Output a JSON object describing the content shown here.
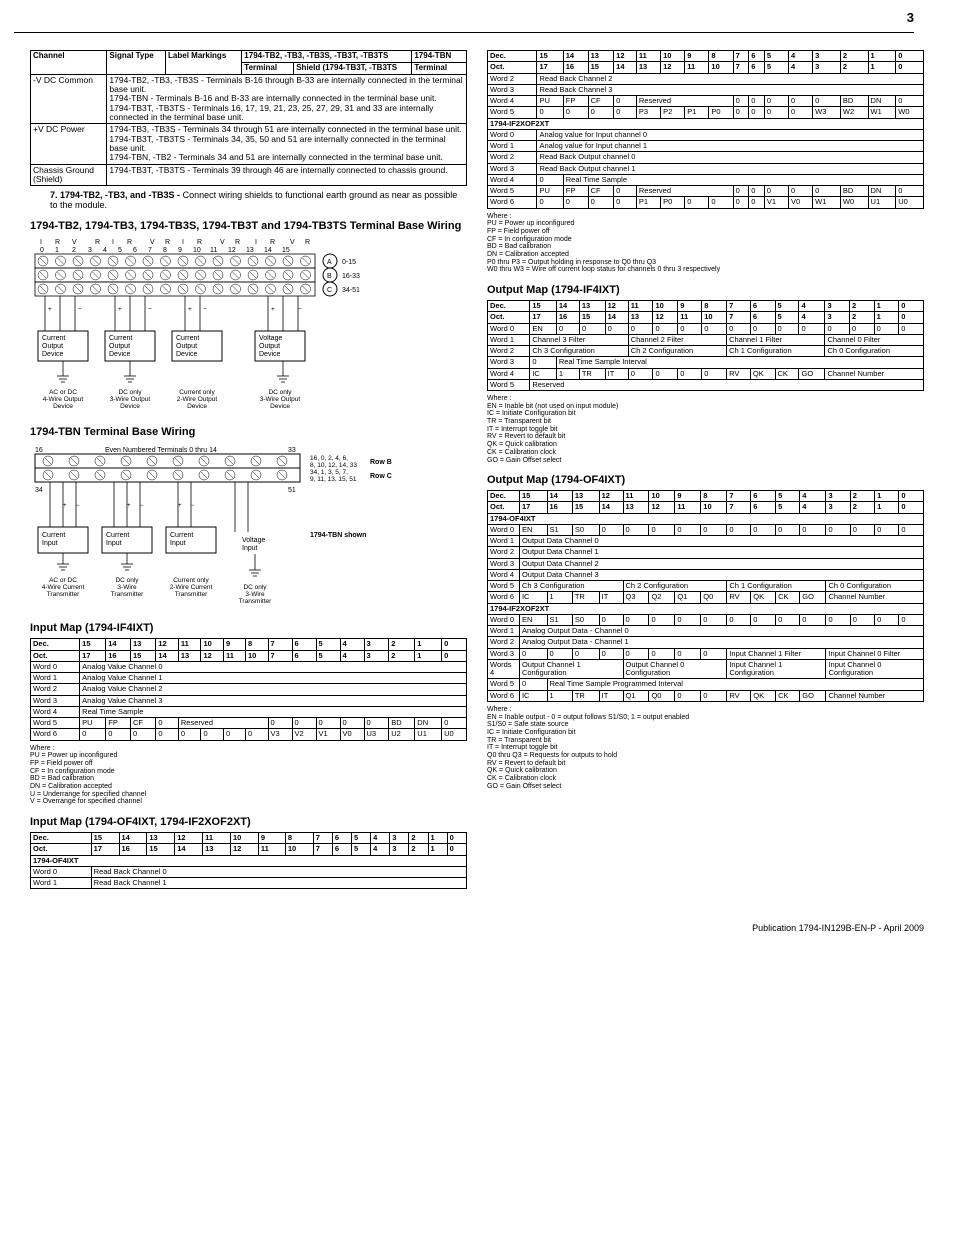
{
  "page_number": "3",
  "publication": "Publication 1794-IN129B-EN-P - April 2009",
  "footnote": {
    "num": "7.",
    "bold": "1794-TB2, -TB3, and -TB3S -",
    "text": "Connect wiring shields to functional earth ground as near as possible to the module."
  },
  "channel_table": {
    "headers": [
      "Channel",
      "Signal Type",
      "Label Markings",
      "1794-TB2, -TB3, -TB3S, -TB3T, -TB3TS",
      "1794-TBN"
    ],
    "sub_headers": [
      "Terminal",
      "Shield (1794-TB3T, -TB3TS",
      "Terminal"
    ],
    "rows": [
      {
        "ch": "-V DC Common",
        "desc": "1794-TB2, -TB3, -TB3S - Terminals B-16 through B-33 are internally connected in the terminal base unit.\n1794-TBN - Terminals B-16 and B-33 are internally connected in the terminal base unit.\n1794-TB3T, -TB3TS - Terminals 16, 17, 19, 21, 23, 25, 27, 29, 31 and 33 are internally connected in the terminal base unit."
      },
      {
        "ch": "+V DC Power",
        "desc": "1794-TB3, -TB3S - Terminals 34 through 51 are internally connected in the terminal base unit.\n1794-TB3T, -TB3TS - Terminals 34, 35, 50 and 51 are internally connected in the terminal base unit.\n1794-TBN, -TB2 - Terminals 34 and 51 are internally connected in the terminal base unit."
      },
      {
        "ch": "Chassis Ground (Shield)",
        "desc": "1794-TB3T, -TB3TS - Terminals 39 through 46 are internally connected to chassis ground."
      }
    ]
  },
  "wiring_section": {
    "title": "1794-TB2, 1794-TB3, 1794-TB3S, 1794-TB3T and 1794-TB3TS Terminal Base Wiring",
    "rowA_label": "0-15",
    "rowB_label": "16-33",
    "rowC_label": "34-51",
    "devices": [
      "Current Output Device",
      "Current Output Device",
      "Current Output Device",
      "Voltage Output Device"
    ],
    "wire_labels": [
      "AC or DC 4-Wire Output Device",
      "DC only 3-Wire Output Device",
      "Current only 2-Wire Output Device",
      "DC only 3-Wire Output Device"
    ]
  },
  "tbn_section": {
    "title": "1794-TBN Terminal Base Wiring",
    "rowB_label": "Row B",
    "rowB_text": "16, 0, 2, 4, 6, 8, 10, 12, 14, 33",
    "rowC_label": "Row C",
    "rowC_text": "34, 1, 3, 5, 7, 9, 11, 13, 15, 51",
    "top_label": "Even Numbered Terminals 0 thru 14",
    "left_num": "16",
    "right_num": "33",
    "left_num2": "34",
    "right_num2": "51",
    "shown_label": "1794-TBN shown",
    "devices": [
      "Current Input",
      "Current Input",
      "Current Input",
      "Voltage Input"
    ],
    "wire_labels": [
      "AC or DC 4-Wire Current Transmitter",
      "DC only 3-Wire Transmitter",
      "Current only 2-Wire Current Transmitter",
      "DC only 3-Wire Transmitter"
    ]
  },
  "input_map_if4ixt": {
    "title": "Input Map  (1794-IF4IXT)",
    "dec_header": [
      "Dec.",
      "15",
      "14",
      "13",
      "12",
      "11",
      "10",
      "9",
      "8",
      "7",
      "6",
      "5",
      "4",
      "3",
      "2",
      "1",
      "0"
    ],
    "oct_header": [
      "Oct.",
      "17",
      "16",
      "15",
      "14",
      "13",
      "12",
      "11",
      "10",
      "7",
      "6",
      "5",
      "4",
      "3",
      "2",
      "1",
      "0"
    ],
    "rows": [
      {
        "label": "Word 0",
        "span": "Analog Value Channel 0"
      },
      {
        "label": "Word 1",
        "span": "Analog Value Channel 1"
      },
      {
        "label": "Word 2",
        "span": "Analog Value Channel 2"
      },
      {
        "label": "Word 3",
        "span": "Analog Value Channel 3"
      },
      {
        "label": "Word 4",
        "span": "Real Time Sample"
      }
    ],
    "word5": [
      "Word 5",
      "PU",
      "FP",
      "CF",
      "0",
      "Reserved",
      "",
      "",
      "",
      "0",
      "0",
      "0",
      "0",
      "0",
      "BD",
      "DN",
      "0"
    ],
    "word6": [
      "Word 6",
      "0",
      "0",
      "0",
      "0",
      "0",
      "0",
      "0",
      "0",
      "V3",
      "V2",
      "V1",
      "V0",
      "U3",
      "U2",
      "U1",
      "U0"
    ],
    "notes": "Where :\nPU = Power up inconfigured\nFP = Field power off\nCF = In configuration mode\nBD = Bad calibration\nDN = Calibration accepted\nU = Underrange for specified channel\nV = Overrange for specified channel"
  },
  "input_map_of4ixt": {
    "title": "Input Map (1794-OF4IXT, 1794-IF2XOF2XT)",
    "dec_header": [
      "Dec.",
      "15",
      "14",
      "13",
      "12",
      "11",
      "10",
      "9",
      "8",
      "7",
      "6",
      "5",
      "4",
      "3",
      "2",
      "1",
      "0"
    ],
    "oct_header": [
      "Oct.",
      "17",
      "16",
      "15",
      "14",
      "13",
      "12",
      "11",
      "10",
      "7",
      "6",
      "5",
      "4",
      "3",
      "2",
      "1",
      "0"
    ],
    "section1": "1794-OF4IXT",
    "rows1": [
      {
        "label": "Word 0",
        "span": "Read Back Channel 0"
      },
      {
        "label": "Word 1",
        "span": "Read Back Channel 1"
      }
    ]
  },
  "right_top": {
    "dec_header": [
      "Dec.",
      "15",
      "14",
      "13",
      "12",
      "11",
      "10",
      "9",
      "8",
      "7",
      "6",
      "5",
      "4",
      "3",
      "2",
      "1",
      "0"
    ],
    "oct_header": [
      "Oct.",
      "17",
      "16",
      "15",
      "14",
      "13",
      "12",
      "11",
      "10",
      "7",
      "6",
      "5",
      "4",
      "3",
      "2",
      "1",
      "0"
    ],
    "rows_a": [
      {
        "label": "Word 2",
        "span": "Read Back Channel 2"
      },
      {
        "label": "Word 3",
        "span": "Read Back Channel 3"
      }
    ],
    "word4": [
      "Word 4",
      "PU",
      "FP",
      "CF",
      "0",
      "Reserved",
      "",
      "",
      "",
      "0",
      "0",
      "0",
      "0",
      "0",
      "BD",
      "DN",
      "0"
    ],
    "word5": [
      "Word 5",
      "0",
      "0",
      "0",
      "0",
      "P3",
      "P2",
      "P1",
      "P0",
      "0",
      "0",
      "0",
      "0",
      "W3",
      "W2",
      "W1",
      "W0"
    ],
    "section2": "1794-IF2XOF2XT",
    "rows_b": [
      {
        "label": "Word 0",
        "span": "Analog value for Input channel 0"
      },
      {
        "label": "Word 1",
        "span": "Analog value for Input channel 1"
      },
      {
        "label": "Word 2",
        "span": "Read Back Output channel 0"
      },
      {
        "label": "Word 3",
        "span": "Read Back Output channel 1"
      }
    ],
    "word4b": [
      "Word 4",
      "0",
      "Real Time Sample",
      "",
      "",
      "",
      "",
      "",
      "",
      "",
      "",
      "",
      "",
      "",
      "",
      "",
      ""
    ],
    "word5b": [
      "Word 5",
      "PU",
      "FP",
      "CF",
      "0",
      "Reserved",
      "",
      "",
      "",
      "0",
      "0",
      "0",
      "0",
      "0",
      "BD",
      "DN",
      "0"
    ],
    "word6b": [
      "Word 6",
      "0",
      "0",
      "0",
      "0",
      "P1",
      "P0",
      "0",
      "0",
      "0",
      "0",
      "V1",
      "V0",
      "W1",
      "W0",
      "U1",
      "U0"
    ],
    "notes": "Where :\nPU = Power up inconfigured\nFP = Field power off\nCF = In configuration mode\nBD = Bad calibration\nDN = Calibration accepted\nP0 thru P3 = Output holding in response to Q0 thru Q3\nW0 thru W3 = Wire off current loop status for channels 0 thru 3 respectively"
  },
  "output_map_if4ixt": {
    "title": "Output Map (1794-IF4IXT)",
    "dec_header": [
      "Dec.",
      "15",
      "14",
      "13",
      "12",
      "11",
      "10",
      "9",
      "8",
      "7",
      "6",
      "5",
      "4",
      "3",
      "2",
      "1",
      "0"
    ],
    "oct_header": [
      "Oct.",
      "17",
      "16",
      "15",
      "14",
      "13",
      "12",
      "11",
      "10",
      "7",
      "6",
      "5",
      "4",
      "3",
      "2",
      "1",
      "0"
    ],
    "word0": [
      "Word 0",
      "EN",
      "0",
      "0",
      "0",
      "0",
      "0",
      "0",
      "0",
      "0",
      "0",
      "0",
      "0",
      "0",
      "0",
      "0",
      "0"
    ],
    "word1": [
      "Word 1",
      "Channel 3 Filter",
      "Channel 2 Filter",
      "Channel 1 Filter",
      "Channel 0 Filter"
    ],
    "word2": [
      "Word 2",
      "Ch 3 Configuration",
      "Ch 2 Configuration",
      "Ch 1 Configuration",
      "Ch 0 Configuration"
    ],
    "word3": [
      "Word 3",
      "0",
      "Real Time Sample Interval"
    ],
    "word4": [
      "Word 4",
      "IC",
      "1",
      "TR",
      "IT",
      "0",
      "0",
      "0",
      "0",
      "RV",
      "QK",
      "CK",
      "GO",
      "Channel Number"
    ],
    "word5": [
      "Word 5",
      "Reserved"
    ],
    "notes": "Where :\nEN = Inable bit (not used on input module)\nIC = Initiate Configuration bit\nTR = Transparent bit\nIT = Interrupt toggle bit\nRV = Revert to default bit\nQK = Quick calibration\nCK = Calibration clock\nGO = Gain Offset select"
  },
  "output_map_of4ixt": {
    "title": "Output Map (1794-OF4IXT)",
    "dec_header": [
      "Dec.",
      "15",
      "14",
      "13",
      "12",
      "11",
      "10",
      "9",
      "8",
      "7",
      "6",
      "5",
      "4",
      "3",
      "2",
      "1",
      "0"
    ],
    "oct_header": [
      "Oct.",
      "17",
      "16",
      "15",
      "14",
      "13",
      "12",
      "11",
      "10",
      "7",
      "6",
      "5",
      "4",
      "3",
      "2",
      "1",
      "0"
    ],
    "section1": "1794-OF4IXT",
    "word0a": [
      "Word 0",
      "EN",
      "S1",
      "S0",
      "0",
      "0",
      "0",
      "0",
      "0",
      "0",
      "0",
      "0",
      "0",
      "0",
      "0",
      "0",
      "0"
    ],
    "rows_a": [
      {
        "label": "Word 1",
        "span": "Output Data Channel 0"
      },
      {
        "label": "Word 2",
        "span": "Output Data Channel 1"
      },
      {
        "label": "Word 3",
        "span": "Output Data Channel 2"
      },
      {
        "label": "Word 4",
        "span": "Output Data Channel 3"
      }
    ],
    "word5a": [
      "Word 5",
      "Ch 3 Configuration",
      "Ch 2 Configuration",
      "Ch 1 Configuration",
      "Ch 0 Configuration"
    ],
    "word6a": [
      "Word 6",
      "IC",
      "1",
      "TR",
      "IT",
      "Q3",
      "Q2",
      "Q1",
      "Q0",
      "RV",
      "QK",
      "CK",
      "GO",
      "Channel Number"
    ],
    "section2": "1794-IF2XOF2XT",
    "word0b": [
      "Word 0",
      "EN",
      "S1",
      "S0",
      "0",
      "0",
      "0",
      "0",
      "0",
      "0",
      "0",
      "0",
      "0",
      "0",
      "0",
      "0",
      "0"
    ],
    "rows_b": [
      {
        "label": "Word 1",
        "span": "Analog Output Data - Channel 0"
      },
      {
        "label": "Word 2",
        "span": "Analog Output Data - Channel 1"
      }
    ],
    "word3b": [
      "Word 3",
      "0",
      "0",
      "0",
      "0",
      "0",
      "0",
      "0",
      "0",
      "Input Channel 1 Filter",
      "Input Channel 0 Filter"
    ],
    "words4b": [
      "Words 4",
      "Output Channel 1 Configuration",
      "Output Channel 0 Configuration",
      "Input Channel 1 Configuration",
      "Input Channel 0 Configuration"
    ],
    "word5b": [
      "Word 5",
      "0",
      "Real Time Sample Programmed Interval"
    ],
    "word6b": [
      "Word 6",
      "IC",
      "1",
      "TR",
      "IT",
      "Q1",
      "Q0",
      "0",
      "0",
      "RV",
      "QK",
      "CK",
      "GO",
      "Channel Number"
    ],
    "notes": "Where :\nEN = Inable output - 0 = output follows S1/S0; 1 = output enabled\nS1/S0 = Safe state source\nIC = Initiate Configuration bit\nTR = Transparent bit\nIT = Interrupt toggle bit\nQ0 thru Q3 = Requests for outputs to hold\nRV = Revert to default bit\nQK = Quick calibration\nCK = Calibration clock\nGO = Gain Offset select"
  }
}
